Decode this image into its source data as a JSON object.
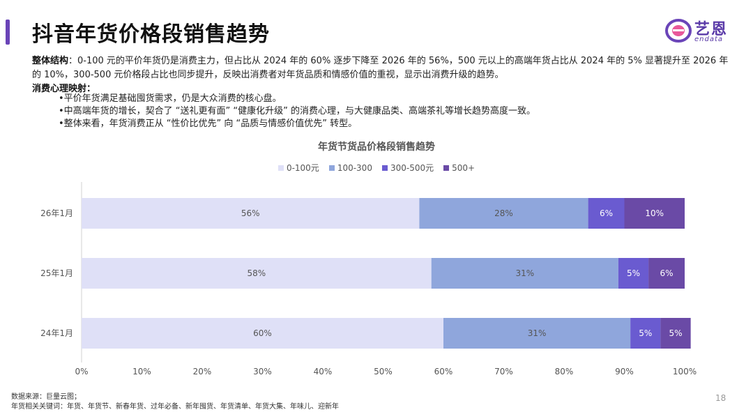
{
  "header": {
    "title": "抖音年货价格段销售趋势",
    "accent_color": "#6a44b8"
  },
  "logo": {
    "cn": "艺恩",
    "en": "endata",
    "icon": "endata-logo-icon"
  },
  "summary": {
    "label": "整体结构",
    "text": "：0-100 元的平价年货仍是消费主力，但占比从 2024 年的 60% 逐步下降至 2026 年的 56%，500 元以上的高端年货占比从 2024 年的 5% 显著提升至 2026 年的 10%，300-500 元价格段占比也同步提升，反映出消费者对年货品质和情感价值的重视，显示出消费升级的趋势。"
  },
  "psych": {
    "label": "消费心理映射",
    "colon": "：",
    "bullets": [
      "•平价年货满足基础囤货需求，仍是大众消费的核心盘。",
      "•中高端年货的增长，契合了 “送礼更有面” “健康化升级” 的消费心理，与大健康品类、高端茶礼等增长趋势高度一致。",
      "•整体来看，年货消费正从 “性价比优先” 向 “品质与情感价值优先” 转型。"
    ]
  },
  "chart_data": {
    "type": "bar",
    "orientation": "horizontal",
    "stacked": true,
    "title": "年货节货品价格段销售趋势",
    "categories": [
      "26年1月",
      "25年1月",
      "24年1月"
    ],
    "series": [
      {
        "name": "0-100元",
        "color": "#dfe0f7",
        "values": [
          56,
          58,
          60
        ]
      },
      {
        "name": "100-300",
        "color": "#8fa6dc",
        "values": [
          28,
          31,
          31
        ]
      },
      {
        "name": "300-500元",
        "color": "#6a5bd0",
        "values": [
          6,
          5,
          5
        ]
      },
      {
        "name": "500+",
        "color": "#6a4aa6",
        "values": [
          10,
          6,
          5
        ]
      }
    ],
    "data_labels": [
      [
        "56%",
        "58%",
        "60%"
      ],
      [
        "28%",
        "31%",
        "31%"
      ],
      [
        "6%",
        "5%",
        "5%"
      ],
      [
        "10%",
        "6%",
        "5%"
      ]
    ],
    "x_ticks": [
      "0%",
      "10%",
      "20%",
      "30%",
      "40%",
      "50%",
      "60%",
      "70%",
      "80%",
      "90%",
      "100%"
    ],
    "xlim": [
      0,
      100
    ],
    "legend_position": "top",
    "grid": false
  },
  "footer": {
    "source": "数据来源：巨量云图；",
    "keywords": "年货相关关键词：年货、年货节、新春年货、过年必备、新年囤货、年货清单、年货大集、年味儿、迎新年"
  },
  "page_number": "18"
}
